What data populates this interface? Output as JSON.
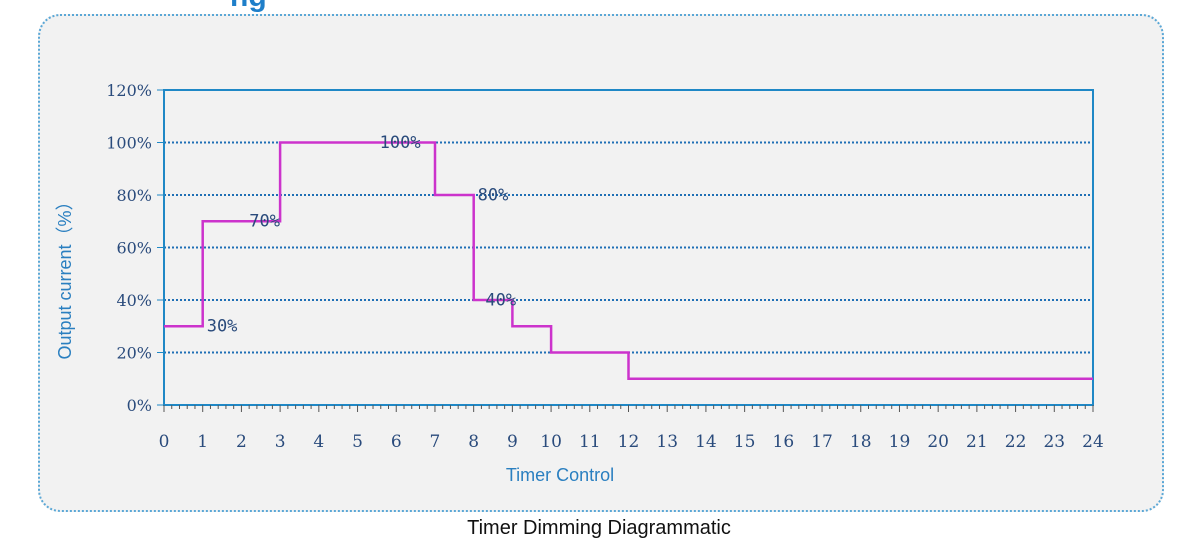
{
  "page_title_partial": "ng",
  "caption": "Timer Dimming Diagrammatic",
  "colors": {
    "panel_background": "#f2f2f2",
    "panel_border": "#5aa7d6",
    "plot_border": "#1f88c6",
    "gridline": "#1f6fb5",
    "series_line": "#cc33cc",
    "tick_label": "#2a4b7c",
    "axis_title": "#2a7fc0"
  },
  "chart_data": {
    "type": "line",
    "step": true,
    "title": "",
    "xlabel": "Timer Control",
    "ylabel": "Output current（%）",
    "xlim": [
      0,
      24
    ],
    "ylim": [
      0,
      120
    ],
    "x_ticks": [
      "0",
      "1",
      "2",
      "3",
      "4",
      "5",
      "6",
      "7",
      "8",
      "9",
      "10",
      "11",
      "12",
      "13",
      "14",
      "15",
      "16",
      "17",
      "18",
      "19",
      "20",
      "21",
      "22",
      "23",
      "24"
    ],
    "y_ticks": [
      "0%",
      "20%",
      "40%",
      "60%",
      "80%",
      "100%",
      "120%"
    ],
    "grid": true,
    "legend": "none",
    "series": [
      {
        "x": [
          0,
          1,
          1,
          3,
          3,
          7,
          7,
          8,
          8,
          9,
          9,
          10,
          10,
          12,
          12,
          24
        ],
        "y": [
          30,
          30,
          70,
          70,
          100,
          100,
          80,
          80,
          40,
          40,
          30,
          30,
          20,
          20,
          10,
          10
        ]
      }
    ],
    "annotations": [
      {
        "text": "30%",
        "x": 1.5,
        "y": 28
      },
      {
        "text": "70%",
        "x": 2.6,
        "y": 68
      },
      {
        "text": "100%",
        "x": 6.1,
        "y": 98
      },
      {
        "text": "80%",
        "x": 8.5,
        "y": 78
      },
      {
        "text": "40%",
        "x": 8.7,
        "y": 38
      }
    ]
  }
}
